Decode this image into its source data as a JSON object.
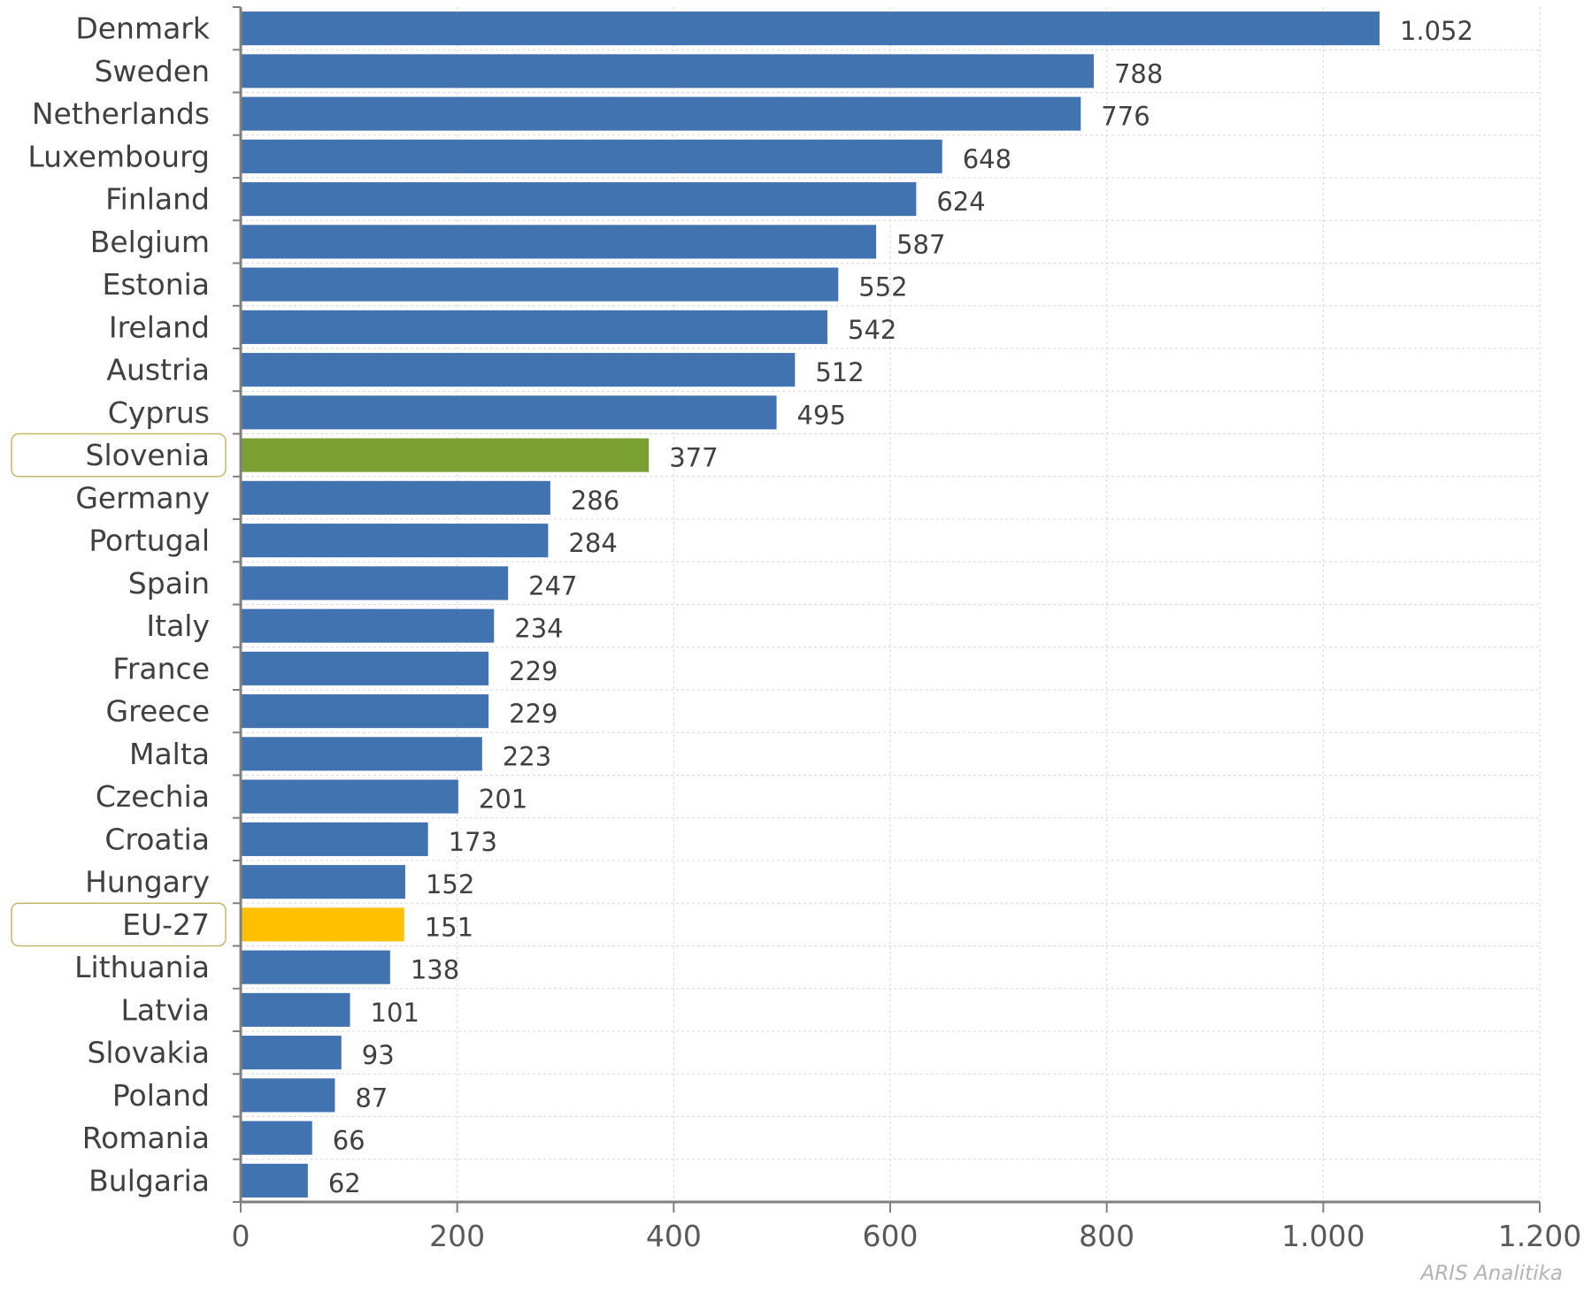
{
  "chart_data": {
    "type": "bar",
    "orientation": "horizontal",
    "title": "",
    "xlabel": "",
    "ylabel": "",
    "xlim": [
      0,
      1200
    ],
    "x_ticks": [
      {
        "value": 0,
        "label": "0"
      },
      {
        "value": 200,
        "label": "200"
      },
      {
        "value": 400,
        "label": "400"
      },
      {
        "value": 600,
        "label": "600"
      },
      {
        "value": 800,
        "label": "800"
      },
      {
        "value": 1000,
        "label": "1.000"
      },
      {
        "value": 1200,
        "label": "1.200"
      }
    ],
    "grid": true,
    "categories": [
      "Denmark",
      "Sweden",
      "Netherlands",
      "Luxembourg",
      "Finland",
      "Belgium",
      "Estonia",
      "Ireland",
      "Austria",
      "Cyprus",
      "Slovenia",
      "Germany",
      "Portugal",
      "Spain",
      "Italy",
      "France",
      "Greece",
      "Malta",
      "Czechia",
      "Croatia",
      "Hungary",
      "EU-27",
      "Lithuania",
      "Latvia",
      "Slovakia",
      "Poland",
      "Romania",
      "Bulgaria"
    ],
    "values": [
      1052,
      788,
      776,
      648,
      624,
      587,
      552,
      542,
      512,
      495,
      377,
      286,
      284,
      247,
      234,
      229,
      229,
      223,
      201,
      173,
      152,
      151,
      138,
      101,
      93,
      87,
      66,
      62
    ],
    "value_labels": [
      "1.052",
      "788",
      "776",
      "648",
      "624",
      "587",
      "552",
      "542",
      "512",
      "495",
      "377",
      "286",
      "284",
      "247",
      "234",
      "229",
      "229",
      "223",
      "201",
      "173",
      "152",
      "151",
      "138",
      "101",
      "93",
      "87",
      "66",
      "62"
    ],
    "colors": {
      "default": "#4173b0",
      "highlight": {
        "Slovenia": "#7aa033",
        "EU-27": "#ffc000"
      },
      "highlight_box": "#c9b56a"
    },
    "highlighted_labels": [
      "Slovenia",
      "EU-27"
    ]
  },
  "credit": "ARIS Analitika"
}
